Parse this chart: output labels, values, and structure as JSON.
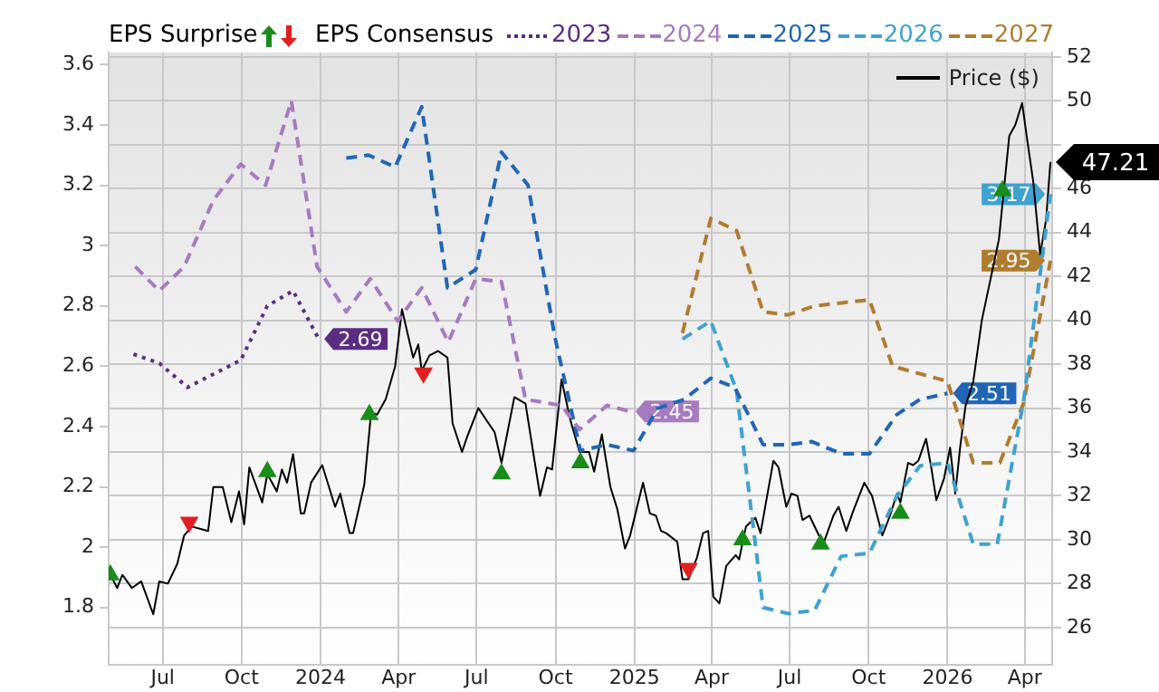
{
  "chart_data": {
    "type": "line",
    "legend": "top",
    "legend_title": "EPS Consensus",
    "annotations": [
      "EPS Surprise"
    ],
    "grid": true,
    "xlim": [
      "2023-04-29",
      "2026-05-03"
    ],
    "xticks": [
      {
        "value": "2023-07-01",
        "label": "Jul"
      },
      {
        "value": "2023-10-01",
        "label": "Oct"
      },
      {
        "value": "2024-01-01",
        "label": "2024"
      },
      {
        "value": "2024-04-01",
        "label": "Apr"
      },
      {
        "value": "2024-07-01",
        "label": "Jul"
      },
      {
        "value": "2024-10-01",
        "label": "Oct"
      },
      {
        "value": "2025-01-01",
        "label": "2025"
      },
      {
        "value": "2025-04-01",
        "label": "Apr"
      },
      {
        "value": "2025-07-01",
        "label": "Jul"
      },
      {
        "value": "2025-10-01",
        "label": "Oct"
      },
      {
        "value": "2026-01-01",
        "label": "2026"
      },
      {
        "value": "2026-04-01",
        "label": "Apr"
      }
    ],
    "ylim": [
      1.61,
      3.64
    ],
    "yticks": [
      1.8,
      2,
      2.2,
      2.4,
      2.6,
      2.8,
      3,
      3.2,
      3.4,
      3.6
    ],
    "y2lim": [
      24.3,
      52.2
    ],
    "y2ticks": [
      26,
      28,
      30,
      32,
      34,
      36,
      38,
      40,
      42,
      44,
      46,
      {
        "value": 48,
        "label": null
      },
      50,
      52
    ],
    "series": [
      {
        "name": "2023",
        "color": "#5b2d82",
        "line_style": "dotted",
        "x": [
          "2023-05-28",
          "2023-06-27",
          "2023-07-30",
          "2023-09-30",
          "2023-10-31",
          "2023-11-30",
          "2023-12-30"
        ],
        "values": [
          2.64,
          2.61,
          2.53,
          2.62,
          2.8,
          2.85,
          2.69
        ],
        "value_labels": [
          null,
          null,
          null,
          null,
          null,
          null,
          "2.69"
        ]
      },
      {
        "name": "2024",
        "color": "#a67bc0",
        "line_style": "dashed",
        "x": [
          "2023-05-30",
          "2023-06-27",
          "2023-07-26",
          "2023-08-29",
          "2023-09-30",
          "2023-10-29",
          "2023-11-28",
          "2023-12-28",
          "2024-01-31",
          "2024-02-28",
          "2024-03-31",
          "2024-04-28",
          "2024-05-29",
          "2024-06-30",
          "2024-07-30",
          "2024-08-27",
          "2024-10-08",
          "2024-10-29",
          "2024-11-30",
          "2024-12-27"
        ],
        "values": [
          2.93,
          2.85,
          2.93,
          3.15,
          3.27,
          3.2,
          3.48,
          2.93,
          2.78,
          2.89,
          2.75,
          2.86,
          2.68,
          2.89,
          2.88,
          2.49,
          2.47,
          2.39,
          2.47,
          2.45
        ],
        "value_labels": [
          null,
          null,
          null,
          null,
          null,
          null,
          null,
          null,
          null,
          null,
          null,
          null,
          null,
          null,
          null,
          null,
          null,
          null,
          null,
          "2.45"
        ]
      },
      {
        "name": "2025",
        "color": "#2166b5",
        "line_style": "dashed",
        "x": [
          "2024-01-31",
          "2024-02-26",
          "2024-03-28",
          "2024-04-28",
          "2024-05-28",
          "2024-06-30",
          "2024-07-30",
          "2024-08-30",
          "2024-09-30",
          "2024-10-30",
          "2024-11-30",
          "2024-12-31",
          "2025-01-28",
          "2025-02-28",
          "2025-03-31",
          "2025-04-28",
          "2025-05-31",
          "2025-06-29",
          "2025-07-27",
          "2025-08-30",
          "2025-10-02",
          "2025-11-03",
          "2025-11-30",
          "2026-01-01"
        ],
        "values": [
          3.29,
          3.3,
          3.26,
          3.46,
          2.86,
          2.92,
          3.31,
          3.2,
          2.7,
          2.32,
          2.34,
          2.32,
          2.46,
          2.49,
          2.56,
          2.53,
          2.34,
          2.34,
          2.35,
          2.31,
          2.31,
          2.44,
          2.49,
          2.51
        ],
        "value_labels": [
          null,
          null,
          null,
          null,
          null,
          null,
          null,
          null,
          null,
          null,
          null,
          null,
          null,
          null,
          null,
          null,
          null,
          null,
          null,
          null,
          null,
          null,
          null,
          "2.51"
        ]
      },
      {
        "name": "2026",
        "color": "#3fa2d0",
        "line_style": "dashed",
        "x": [
          "2025-02-26",
          "2025-03-31",
          "2025-04-30",
          "2025-05-31",
          "2025-06-29",
          "2025-07-30",
          "2025-08-30",
          "2025-10-02",
          "2025-11-03",
          "2025-11-30",
          "2026-01-01",
          "2026-01-31",
          "2026-02-28",
          "2026-03-31",
          "2026-05-01"
        ],
        "values": [
          2.69,
          2.75,
          2.52,
          1.8,
          1.78,
          1.79,
          1.97,
          1.98,
          2.17,
          2.27,
          2.28,
          2.01,
          2.01,
          2.49,
          3.17
        ],
        "value_labels": [
          null,
          null,
          null,
          null,
          null,
          null,
          null,
          null,
          null,
          null,
          null,
          null,
          null,
          null,
          "3.17"
        ]
      },
      {
        "name": "2027",
        "color": "#b07c30",
        "line_style": "dashed",
        "x": [
          "2025-02-26",
          "2025-03-31",
          "2025-04-30",
          "2025-05-31",
          "2025-06-29",
          "2025-07-30",
          "2025-08-30",
          "2025-10-02",
          "2025-10-29",
          "2026-01-01",
          "2026-01-31",
          "2026-03-03",
          "2026-03-31",
          "2026-05-01"
        ],
        "values": [
          2.71,
          3.09,
          3.05,
          2.78,
          2.77,
          2.8,
          2.81,
          2.82,
          2.6,
          2.55,
          2.28,
          2.28,
          2.48,
          2.95
        ],
        "value_labels": [
          null,
          null,
          null,
          null,
          null,
          null,
          null,
          null,
          null,
          null,
          null,
          null,
          null,
          "2.95"
        ]
      },
      {
        "name": "Price ($)",
        "color": "#000000",
        "line_style": "solid",
        "axis": "y2",
        "x": [
          "2023-05-01",
          "2023-05-09",
          "2023-05-15",
          "2023-05-26",
          "2023-06-06",
          "2023-06-20",
          "2023-06-27",
          "2023-07-07",
          "2023-07-18",
          "2023-07-26",
          "2023-08-04",
          "2023-08-23",
          "2023-08-29",
          "2023-09-09",
          "2023-09-19",
          "2023-09-28",
          "2023-10-04",
          "2023-10-10",
          "2023-10-25",
          "2023-10-31",
          "2023-11-11",
          "2023-11-17",
          "2023-11-23",
          "2023-11-30",
          "2023-12-09",
          "2023-12-13",
          "2023-12-21",
          "2024-01-03",
          "2024-01-18",
          "2024-01-24",
          "2024-02-04",
          "2024-02-08",
          "2024-02-21",
          "2024-02-29",
          "2024-03-07",
          "2024-03-17",
          "2024-03-28",
          "2024-04-05",
          "2024-04-18",
          "2024-04-24",
          "2024-04-28",
          "2024-05-07",
          "2024-05-17",
          "2024-05-28",
          "2024-06-03",
          "2024-06-14",
          "2024-06-20",
          "2024-07-03",
          "2024-07-15",
          "2024-07-22",
          "2024-07-30",
          "2024-08-14",
          "2024-08-27",
          "2024-09-13",
          "2024-09-21",
          "2024-09-27",
          "2024-10-08",
          "2024-10-18",
          "2024-10-29",
          "2024-11-09",
          "2024-11-15",
          "2024-11-24",
          "2024-12-04",
          "2024-12-12",
          "2024-12-21",
          "2024-12-27",
          "2025-01-11",
          "2025-01-19",
          "2025-01-26",
          "2025-02-01",
          "2025-02-07",
          "2025-02-20",
          "2025-02-26",
          "2025-03-05",
          "2025-03-15",
          "2025-03-22",
          "2025-03-28",
          "2025-04-03",
          "2025-04-10",
          "2025-04-18",
          "2025-04-29",
          "2025-05-03",
          "2025-05-11",
          "2025-05-22",
          "2025-05-28",
          "2025-06-12",
          "2025-06-18",
          "2025-06-27",
          "2025-07-03",
          "2025-07-10",
          "2025-07-16",
          "2025-07-24",
          "2025-08-04",
          "2025-08-10",
          "2025-08-21",
          "2025-08-27",
          "2025-09-05",
          "2025-09-13",
          "2025-09-17",
          "2025-09-26",
          "2025-10-05",
          "2025-10-09",
          "2025-10-17",
          "2025-10-26",
          "2025-11-03",
          "2025-11-07",
          "2025-11-16",
          "2025-11-22",
          "2025-11-28",
          "2025-12-07",
          "2025-12-13",
          "2025-12-19",
          "2025-12-28",
          "2026-01-04",
          "2026-01-10",
          "2026-01-16",
          "2026-01-22",
          "2026-01-31",
          "2026-02-10",
          "2026-03-02",
          "2026-03-14",
          "2026-03-21",
          "2026-03-29",
          "2026-04-04",
          "2026-04-11",
          "2026-04-19",
          "2026-04-26",
          "2026-05-01"
        ],
        "values": [
          28.4,
          27.8,
          28.4,
          27.8,
          28.1,
          26.6,
          28.1,
          28.0,
          28.9,
          30.2,
          30.6,
          30.4,
          32.4,
          32.4,
          30.8,
          32.2,
          30.7,
          33.3,
          31.7,
          33.0,
          32.2,
          33.2,
          32.6,
          33.9,
          31.2,
          31.2,
          32.6,
          33.4,
          31.5,
          32.1,
          30.3,
          30.3,
          32.5,
          35.8,
          35.7,
          36.4,
          37.9,
          40.5,
          38.3,
          38.9,
          37.7,
          38.4,
          38.6,
          38.3,
          35.3,
          34.0,
          34.7,
          36.0,
          35.3,
          34.9,
          33.5,
          36.5,
          36.2,
          32.0,
          33.3,
          33.2,
          37.3,
          35.5,
          34.0,
          34.0,
          33.1,
          34.8,
          32.4,
          31.4,
          29.6,
          30.2,
          32.6,
          31.2,
          31.1,
          30.4,
          30.3,
          29.9,
          28.2,
          28.2,
          29.2,
          30.3,
          30.4,
          27.4,
          27.1,
          28.8,
          29.3,
          29.1,
          30.6,
          31.0,
          30.3,
          33.6,
          33.3,
          31.5,
          32.1,
          32.0,
          30.9,
          31.1,
          30.2,
          29.9,
          31.1,
          31.5,
          30.4,
          31.3,
          31.7,
          32.6,
          32.0,
          31.4,
          30.2,
          31.1,
          32.1,
          31.7,
          33.5,
          33.4,
          33.6,
          34.6,
          33.3,
          31.8,
          32.8,
          34.2,
          32.1,
          34.3,
          36.1,
          37.2,
          40.0,
          43.7,
          48.4,
          48.9,
          49.9,
          48.2,
          46.3,
          43.0,
          44.6,
          47.21
        ],
        "value_labels": [
          null,
          null,
          null,
          null,
          null,
          null,
          null,
          null,
          null,
          null,
          null,
          null,
          null,
          null,
          null,
          null,
          null,
          null,
          null,
          null,
          null,
          null,
          null,
          null,
          null,
          null,
          null,
          null,
          null,
          null,
          null,
          null,
          null,
          null,
          null,
          null,
          null,
          null,
          null,
          null,
          null,
          null,
          null,
          null,
          null,
          null,
          null,
          null,
          null,
          null,
          null,
          null,
          null,
          null,
          null,
          null,
          null,
          null,
          null,
          null,
          null,
          null,
          null,
          null,
          null,
          null,
          null,
          null,
          null,
          null,
          null,
          null,
          null,
          null,
          null,
          null,
          null,
          null,
          null,
          null,
          null,
          null,
          null,
          null,
          null,
          null,
          null,
          null,
          null,
          null,
          null,
          null,
          null,
          null,
          null,
          null,
          null,
          null,
          null,
          null,
          null,
          null,
          null,
          null,
          null,
          null,
          null,
          null,
          null,
          null,
          null,
          null,
          null,
          null,
          null,
          null,
          null,
          null,
          null,
          null,
          null,
          null,
          null,
          null,
          null,
          null,
          null,
          "47.21"
        ]
      },
      {
        "type": "scatter",
        "color": "#1a8c1a",
        "marker": "triangle",
        "axis": "y2",
        "x": [
          "2023-05-01",
          "2023-10-31",
          "2024-02-27",
          "2024-07-30",
          "2024-10-30",
          "2025-05-07",
          "2025-08-06",
          "2025-11-07",
          "2026-03-06"
        ],
        "values": [
          28.4,
          33.1,
          35.7,
          33.0,
          33.5,
          30.0,
          29.8,
          31.2,
          45.9
        ]
      },
      {
        "type": "scatter",
        "color": "#e02020",
        "marker": "triangle",
        "axis": "y2",
        "x": [
          "2023-08-01",
          "2024-04-30",
          "2025-03-05"
        ],
        "values": [
          30.8,
          37.6,
          28.7
        ]
      }
    ]
  }
}
